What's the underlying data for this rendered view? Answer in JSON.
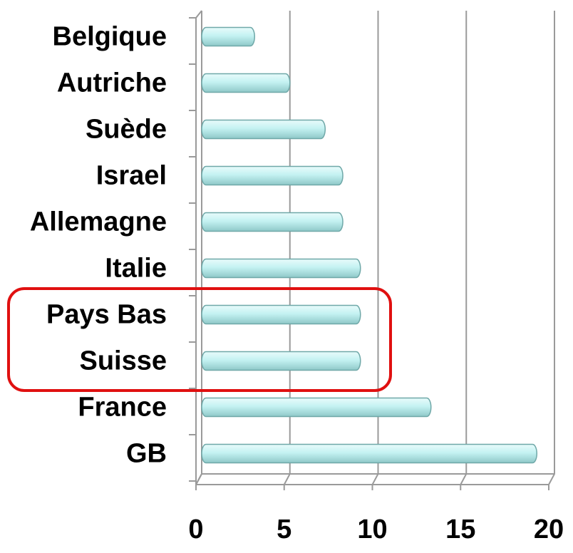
{
  "chart_data": {
    "type": "bar",
    "orientation": "horizontal",
    "categories": [
      "Belgique",
      "Autriche",
      "Suède",
      "Israel",
      "Allemagne",
      "Italie",
      "Pays Bas",
      "Suisse",
      "France",
      "GB"
    ],
    "values": [
      3,
      5,
      7,
      8,
      8,
      9,
      9,
      9,
      13,
      19
    ],
    "color": "#c4f2f2",
    "xlim": [
      0,
      20
    ],
    "xticks": [
      0,
      5,
      10,
      15,
      20
    ],
    "grid": true
  }
}
